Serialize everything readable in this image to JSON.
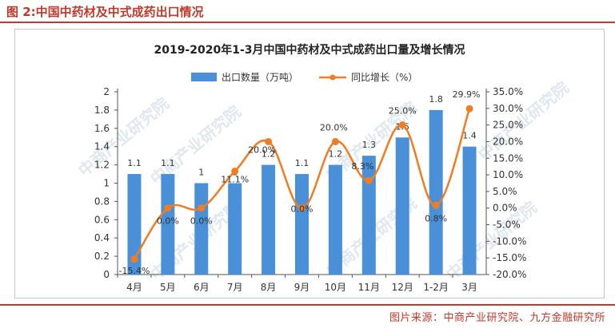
{
  "figure_heading": "图 2:中国中药材及中式成药出口情况",
  "source_note": "图片来源：中商产业研究院、九方金融研究所",
  "watermark": "中商产业研究院",
  "chart_data": {
    "type": "bar",
    "title": "2019-2020年1-3月中国中药材及中式成药出口量及增长情况",
    "categories": [
      "4月",
      "5月",
      "6月",
      "7月",
      "8月",
      "9月",
      "10月",
      "11月",
      "12月",
      "1-2月",
      "3月"
    ],
    "series": [
      {
        "name": "出口数量（万吨）",
        "type": "bar",
        "axis": "left",
        "color": "#4a90d9",
        "values": [
          1.1,
          1.1,
          1,
          1,
          1.2,
          1.1,
          1.2,
          1.3,
          1.5,
          1.8,
          1.4
        ],
        "labels": [
          "1.1",
          "1.1",
          "1",
          "1",
          "1.2",
          "1.1",
          "1.2",
          "1.3",
          "1.5",
          "1.8",
          "1.4"
        ]
      },
      {
        "name": "同比增长（%）",
        "type": "line",
        "axis": "right",
        "color": "#f07d22",
        "values": [
          -15.4,
          0.0,
          0.0,
          11.1,
          20.0,
          0.0,
          20.0,
          8.3,
          25.0,
          0.8,
          29.9
        ],
        "labels": [
          "-15.4%",
          "0.0%",
          "0.0%",
          "11.1%",
          "20.0%",
          "0.0%",
          "20.0%",
          "8.3%",
          "25.0%",
          "0.8%",
          "29.9%"
        ]
      }
    ],
    "y_left": {
      "min": 0,
      "max": 2,
      "ticks": [
        "0",
        "0.2",
        "0.4",
        "0.6",
        "0.8",
        "1",
        "1.2",
        "1.4",
        "1.6",
        "1.8",
        "2"
      ]
    },
    "y_right": {
      "min": -20,
      "max": 35,
      "ticks": [
        "-20.0%",
        "-15.0%",
        "-10.0%",
        "-5.0%",
        "0.0%",
        "5.0%",
        "10.0%",
        "15.0%",
        "20.0%",
        "25.0%",
        "30.0%",
        "35.0%"
      ]
    },
    "grid": false,
    "legend_position": "top"
  }
}
